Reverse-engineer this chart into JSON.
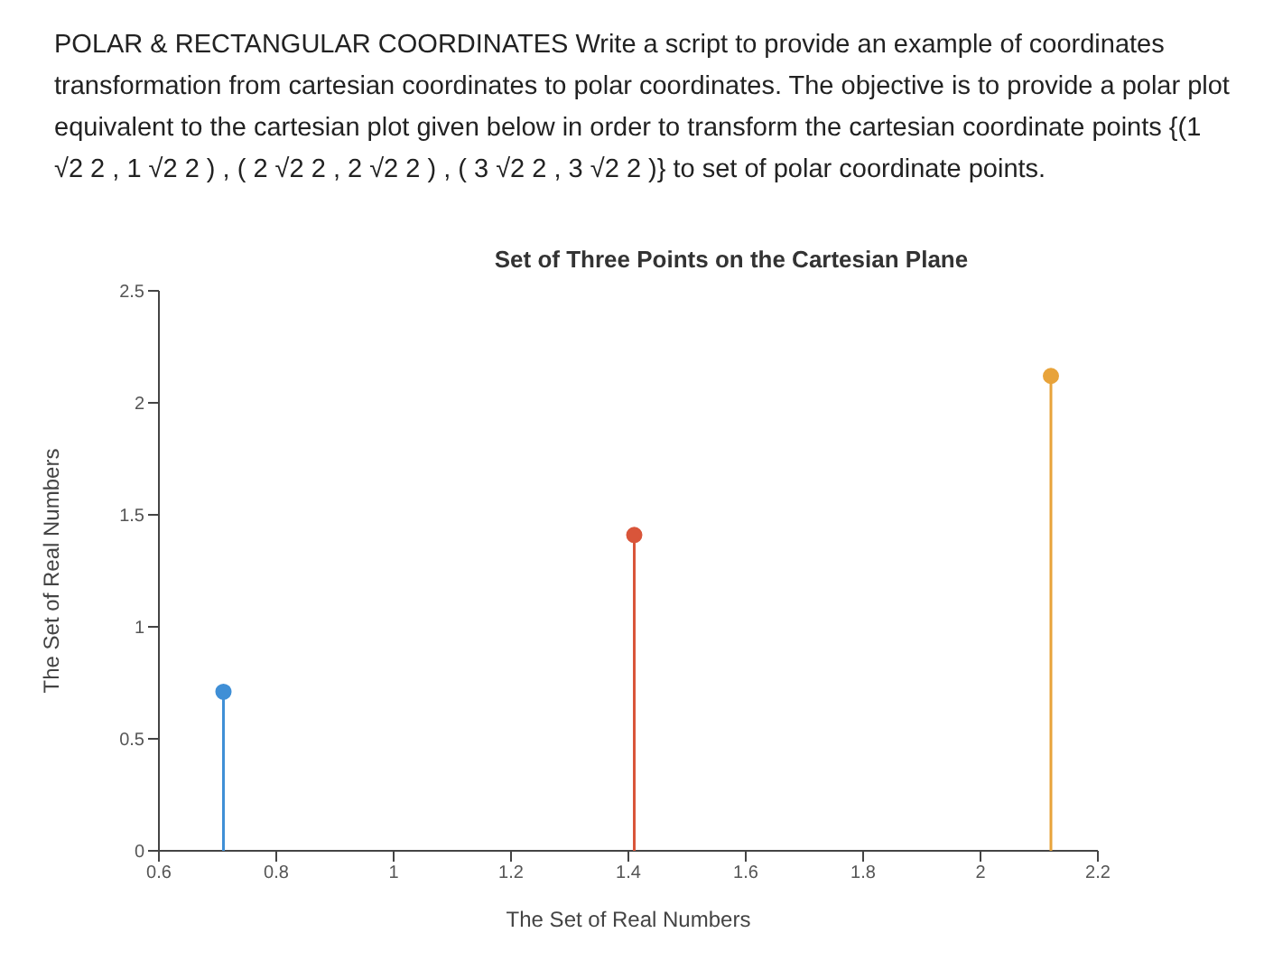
{
  "chart_data": {
    "type": "lollipop",
    "title": "Set of Three Points on the Cartesian Plane",
    "xlabel": "The Set of Real Numbers",
    "ylabel": "The Set of Real Numbers",
    "annotations": [
      "POLAR & RECTANGULAR COORDINATES Write a script to provide an example of coordinates transformation from cartesian coordinates to polar coordinates. The objective is to provide a polar plot equivalent to the cartesian plot given below in order to transform the cartesian coordinate points {(1 √2 2 , 1 √2 2 ) , ( 2 √2 2 , 2 √2 2 ) , ( 3 √2 2 , 3 √2 2 )} to set of polar coordinate points."
    ],
    "series": [
      {
        "color": "#3f8fd6",
        "x": [
          0.71
        ],
        "values": [
          0.71
        ]
      },
      {
        "color": "#d9553a",
        "x": [
          1.41
        ],
        "values": [
          1.41
        ]
      },
      {
        "color": "#e8a33a",
        "x": [
          2.12
        ],
        "values": [
          2.12
        ]
      }
    ],
    "xlim": [
      0.6,
      2.2
    ],
    "xticks": [
      0.6,
      0.8,
      1,
      1.2,
      1.4,
      1.6,
      1.8,
      2,
      2.2
    ],
    "ylim": [
      0,
      2.5
    ],
    "yticks": [
      0,
      0.5,
      1,
      1.5,
      2,
      2.5
    ],
    "marker": "circle",
    "grid": false
  }
}
